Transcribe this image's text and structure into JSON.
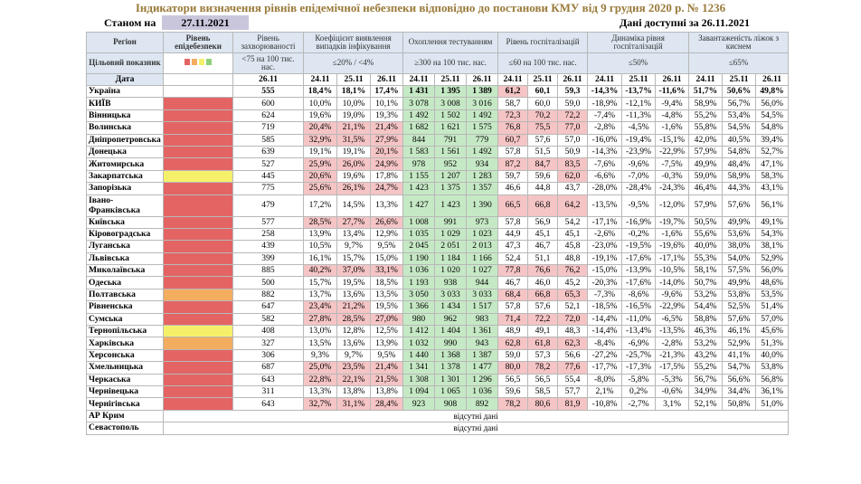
{
  "title": "Індикатори визначення рівнів епідемічної небезпеки відповідно до постанови КМУ від 9 грудня 2020 р. № 1236",
  "as_of_label": "Станом на",
  "as_of_date": "27.11.2021",
  "data_available": "Дані доступні за 26.11.2021",
  "header": {
    "region": "Регіон",
    "risk_level": "Рівень епідебезпеки",
    "incidence": "Рівень захворюваності",
    "detection": "Коефіцієнт виявлення випадків інфікування",
    "testing": "Охоплення тестуванням",
    "hosp": "Рівень госпіталізацій",
    "hosp_dyn": "Динаміка рівня госпіталізацій",
    "beds": "Завантаженість ліжок з киснем",
    "target_label": "Цільовий показник",
    "incidence_target": "<75 на 100 тис. нас.",
    "detection_target": "≤20% / <4%",
    "testing_target": "≥300 на 100 тис. нас.",
    "hosp_target": "≤60 на 100 тис. нас.",
    "hosp_dyn_target": "≤50%",
    "beds_target": "≤65%",
    "date_label": "Дата",
    "incidence_date": "26.11",
    "dates3": [
      "24.11",
      "25.11",
      "26.11"
    ],
    "legend_colors": [
      "#e46464",
      "#f3ad5f",
      "#f5f06a",
      "#8fd07a"
    ]
  },
  "rows": [
    {
      "region": "Україна",
      "risk": "none",
      "inc": "555",
      "det": [
        "18,4%",
        "18,1%",
        "17,4%"
      ],
      "test": [
        "1 431",
        "1 395",
        "1 389"
      ],
      "hosp": [
        "61,2",
        "60,1",
        "59,3"
      ],
      "dyn": [
        "-14,3%",
        "-13,7%",
        "-11,6%"
      ],
      "beds": [
        "51,7%",
        "50,6%",
        "49,8%"
      ],
      "detc": [
        "",
        "",
        ""
      ],
      "testc": [
        "g",
        "g",
        "g"
      ],
      "hospc": [
        "r",
        "",
        ""
      ]
    },
    {
      "region": "КИЇВ",
      "risk": "red",
      "inc": "600",
      "det": [
        "10,0%",
        "10,0%",
        "10,1%"
      ],
      "test": [
        "3 078",
        "3 008",
        "3 016"
      ],
      "hosp": [
        "58,7",
        "60,0",
        "59,0"
      ],
      "dyn": [
        "-18,9%",
        "-12,1%",
        "-9,4%"
      ],
      "beds": [
        "58,9%",
        "56,7%",
        "56,0%"
      ],
      "detc": [
        "",
        "",
        ""
      ],
      "testc": [
        "g",
        "g",
        "g"
      ],
      "hospc": [
        "",
        "",
        ""
      ]
    },
    {
      "region": "Вінницька",
      "risk": "red",
      "inc": "624",
      "det": [
        "19,6%",
        "19,0%",
        "19,3%"
      ],
      "test": [
        "1 492",
        "1 502",
        "1 492"
      ],
      "hosp": [
        "72,3",
        "70,2",
        "72,2"
      ],
      "dyn": [
        "-7,4%",
        "-11,3%",
        "-4,8%"
      ],
      "beds": [
        "55,2%",
        "53,4%",
        "54,5%"
      ],
      "detc": [
        "",
        "",
        ""
      ],
      "testc": [
        "g",
        "g",
        "g"
      ],
      "hospc": [
        "r",
        "r",
        "r"
      ]
    },
    {
      "region": "Волинська",
      "risk": "red",
      "inc": "719",
      "det": [
        "20,4%",
        "21,1%",
        "21,4%"
      ],
      "test": [
        "1 682",
        "1 621",
        "1 575"
      ],
      "hosp": [
        "76,8",
        "75,5",
        "77,0"
      ],
      "dyn": [
        "-2,8%",
        "-4,5%",
        "-1,6%"
      ],
      "beds": [
        "55,8%",
        "54,5%",
        "54,8%"
      ],
      "detc": [
        "r",
        "r",
        "r"
      ],
      "testc": [
        "g",
        "g",
        "g"
      ],
      "hospc": [
        "r",
        "r",
        "r"
      ]
    },
    {
      "region": "Дніпропетровська",
      "risk": "red",
      "inc": "585",
      "det": [
        "32,9%",
        "31,5%",
        "27,9%"
      ],
      "test": [
        "844",
        "791",
        "779"
      ],
      "hosp": [
        "60,7",
        "57,6",
        "57,0"
      ],
      "dyn": [
        "-16,0%",
        "-19,4%",
        "-15,1%"
      ],
      "beds": [
        "42,0%",
        "40,5%",
        "39,4%"
      ],
      "detc": [
        "r",
        "r",
        "r"
      ],
      "testc": [
        "g",
        "g",
        "g"
      ],
      "hospc": [
        "r",
        "",
        ""
      ]
    },
    {
      "region": "Донецька",
      "risk": "red",
      "inc": "639",
      "det": [
        "19,1%",
        "19,1%",
        "20,1%"
      ],
      "test": [
        "1 583",
        "1 561",
        "1 492"
      ],
      "hosp": [
        "57,8",
        "51,5",
        "50,9"
      ],
      "dyn": [
        "-14,3%",
        "-23,9%",
        "-22,9%"
      ],
      "beds": [
        "57,9%",
        "54,8%",
        "52,7%"
      ],
      "detc": [
        "",
        "",
        "r"
      ],
      "testc": [
        "g",
        "g",
        "g"
      ],
      "hospc": [
        "",
        "",
        ""
      ]
    },
    {
      "region": "Житомирська",
      "risk": "red",
      "inc": "527",
      "det": [
        "25,9%",
        "26,0%",
        "24,9%"
      ],
      "test": [
        "978",
        "952",
        "934"
      ],
      "hosp": [
        "87,2",
        "84,7",
        "83,5"
      ],
      "dyn": [
        "-7,6%",
        "-9,6%",
        "-7,5%"
      ],
      "beds": [
        "49,9%",
        "48,4%",
        "47,1%"
      ],
      "detc": [
        "r",
        "r",
        "r"
      ],
      "testc": [
        "g",
        "g",
        "g"
      ],
      "hospc": [
        "r",
        "r",
        "r"
      ]
    },
    {
      "region": "Закарпатська",
      "risk": "yellow",
      "inc": "445",
      "det": [
        "20,6%",
        "19,6%",
        "17,8%"
      ],
      "test": [
        "1 155",
        "1 207",
        "1 283"
      ],
      "hosp": [
        "59,7",
        "59,6",
        "62,0"
      ],
      "dyn": [
        "-6,6%",
        "-7,0%",
        "-0,3%"
      ],
      "beds": [
        "59,0%",
        "58,9%",
        "58,3%"
      ],
      "detc": [
        "r",
        "",
        ""
      ],
      "testc": [
        "g",
        "g",
        "g"
      ],
      "hospc": [
        "",
        "",
        "r"
      ]
    },
    {
      "region": "Запорізька",
      "risk": "red",
      "inc": "775",
      "det": [
        "25,6%",
        "26,1%",
        "24,7%"
      ],
      "test": [
        "1 423",
        "1 375",
        "1 357"
      ],
      "hosp": [
        "46,6",
        "44,8",
        "43,7"
      ],
      "dyn": [
        "-28,0%",
        "-28,4%",
        "-24,3%"
      ],
      "beds": [
        "46,4%",
        "44,3%",
        "43,1%"
      ],
      "detc": [
        "r",
        "r",
        "r"
      ],
      "testc": [
        "g",
        "g",
        "g"
      ],
      "hospc": [
        "",
        "",
        ""
      ]
    },
    {
      "region": "Івано-Франківська",
      "risk": "red",
      "inc": "479",
      "det": [
        "17,2%",
        "14,5%",
        "13,3%"
      ],
      "test": [
        "1 427",
        "1 423",
        "1 390"
      ],
      "hosp": [
        "66,5",
        "66,8",
        "64,2"
      ],
      "dyn": [
        "-13,5%",
        "-9,5%",
        "-12,0%"
      ],
      "beds": [
        "57,9%",
        "57,6%",
        "56,1%"
      ],
      "detc": [
        "",
        "",
        ""
      ],
      "testc": [
        "g",
        "g",
        "g"
      ],
      "hospc": [
        "r",
        "r",
        "r"
      ],
      "tall": true
    },
    {
      "region": "Київська",
      "risk": "red",
      "inc": "577",
      "det": [
        "28,5%",
        "27,7%",
        "26,6%"
      ],
      "test": [
        "1 008",
        "991",
        "973"
      ],
      "hosp": [
        "57,8",
        "56,9",
        "54,2"
      ],
      "dyn": [
        "-17,1%",
        "-16,9%",
        "-19,7%"
      ],
      "beds": [
        "50,5%",
        "49,9%",
        "49,1%"
      ],
      "detc": [
        "r",
        "r",
        "r"
      ],
      "testc": [
        "g",
        "g",
        "g"
      ],
      "hospc": [
        "",
        "",
        ""
      ]
    },
    {
      "region": "Кіровоградська",
      "risk": "red",
      "inc": "258",
      "det": [
        "13,9%",
        "13,4%",
        "12,9%"
      ],
      "test": [
        "1 035",
        "1 029",
        "1 023"
      ],
      "hosp": [
        "44,9",
        "45,1",
        "45,1"
      ],
      "dyn": [
        "-2,6%",
        "-0,2%",
        "-1,6%"
      ],
      "beds": [
        "55,6%",
        "53,6%",
        "54,3%"
      ],
      "detc": [
        "",
        "",
        ""
      ],
      "testc": [
        "g",
        "g",
        "g"
      ],
      "hospc": [
        "",
        "",
        ""
      ]
    },
    {
      "region": "Луганська",
      "risk": "red",
      "inc": "439",
      "det": [
        "10,5%",
        "9,7%",
        "9,5%"
      ],
      "test": [
        "2 045",
        "2 051",
        "2 013"
      ],
      "hosp": [
        "47,3",
        "46,7",
        "45,8"
      ],
      "dyn": [
        "-23,0%",
        "-19,5%",
        "-19,6%"
      ],
      "beds": [
        "40,0%",
        "38,0%",
        "38,1%"
      ],
      "detc": [
        "",
        "",
        ""
      ],
      "testc": [
        "g",
        "g",
        "g"
      ],
      "hospc": [
        "",
        "",
        ""
      ]
    },
    {
      "region": "Львівська",
      "risk": "red",
      "inc": "399",
      "det": [
        "16,1%",
        "15,7%",
        "15,0%"
      ],
      "test": [
        "1 190",
        "1 184",
        "1 166"
      ],
      "hosp": [
        "52,4",
        "51,1",
        "48,8"
      ],
      "dyn": [
        "-19,1%",
        "-17,6%",
        "-17,1%"
      ],
      "beds": [
        "55,3%",
        "54,0%",
        "52,9%"
      ],
      "detc": [
        "",
        "",
        ""
      ],
      "testc": [
        "g",
        "g",
        "g"
      ],
      "hospc": [
        "",
        "",
        ""
      ]
    },
    {
      "region": "Миколаївська",
      "risk": "red",
      "inc": "885",
      "det": [
        "40,2%",
        "37,0%",
        "33,1%"
      ],
      "test": [
        "1 036",
        "1 020",
        "1 027"
      ],
      "hosp": [
        "77,8",
        "76,6",
        "76,2"
      ],
      "dyn": [
        "-15,0%",
        "-13,9%",
        "-10,5%"
      ],
      "beds": [
        "58,1%",
        "57,5%",
        "56,0%"
      ],
      "detc": [
        "r",
        "r",
        "r"
      ],
      "testc": [
        "g",
        "g",
        "g"
      ],
      "hospc": [
        "r",
        "r",
        "r"
      ]
    },
    {
      "region": "Одеська",
      "risk": "red",
      "inc": "500",
      "det": [
        "15,7%",
        "19,5%",
        "18,5%"
      ],
      "test": [
        "1 193",
        "938",
        "944"
      ],
      "hosp": [
        "46,7",
        "46,0",
        "45,2"
      ],
      "dyn": [
        "-20,3%",
        "-17,6%",
        "-14,0%"
      ],
      "beds": [
        "50,7%",
        "49,9%",
        "48,6%"
      ],
      "detc": [
        "",
        "",
        ""
      ],
      "testc": [
        "g",
        "g",
        "g"
      ],
      "hospc": [
        "",
        "",
        ""
      ]
    },
    {
      "region": "Полтавська",
      "risk": "orange",
      "inc": "882",
      "det": [
        "13,7%",
        "13,6%",
        "13,5%"
      ],
      "test": [
        "3 050",
        "3 033",
        "3 033"
      ],
      "hosp": [
        "68,4",
        "66,8",
        "65,3"
      ],
      "dyn": [
        "-7,3%",
        "-8,6%",
        "-9,6%"
      ],
      "beds": [
        "53,2%",
        "53,8%",
        "53,5%"
      ],
      "detc": [
        "",
        "",
        ""
      ],
      "testc": [
        "g",
        "g",
        "g"
      ],
      "hospc": [
        "r",
        "r",
        "r"
      ]
    },
    {
      "region": "Рівненська",
      "risk": "red",
      "inc": "647",
      "det": [
        "23,4%",
        "21,2%",
        "19,5%"
      ],
      "test": [
        "1 366",
        "1 434",
        "1 517"
      ],
      "hosp": [
        "57,8",
        "57,6",
        "52,1"
      ],
      "dyn": [
        "-18,5%",
        "-16,5%",
        "-22,9%"
      ],
      "beds": [
        "54,4%",
        "52,5%",
        "51,4%"
      ],
      "detc": [
        "r",
        "r",
        ""
      ],
      "testc": [
        "g",
        "g",
        "g"
      ],
      "hospc": [
        "",
        "",
        ""
      ]
    },
    {
      "region": "Сумська",
      "risk": "red",
      "inc": "582",
      "det": [
        "27,8%",
        "28,5%",
        "27,0%"
      ],
      "test": [
        "980",
        "962",
        "983"
      ],
      "hosp": [
        "71,4",
        "72,2",
        "72,0"
      ],
      "dyn": [
        "-14,4%",
        "-11,0%",
        "-6,5%"
      ],
      "beds": [
        "58,8%",
        "57,6%",
        "57,0%"
      ],
      "detc": [
        "r",
        "r",
        "r"
      ],
      "testc": [
        "g",
        "g",
        "g"
      ],
      "hospc": [
        "r",
        "r",
        "r"
      ]
    },
    {
      "region": "Тернопільська",
      "risk": "yellow",
      "inc": "408",
      "det": [
        "13,0%",
        "12,8%",
        "12,5%"
      ],
      "test": [
        "1 412",
        "1 404",
        "1 361"
      ],
      "hosp": [
        "48,9",
        "49,1",
        "48,3"
      ],
      "dyn": [
        "-14,4%",
        "-13,4%",
        "-13,5%"
      ],
      "beds": [
        "46,3%",
        "46,1%",
        "45,6%"
      ],
      "detc": [
        "",
        "",
        ""
      ],
      "testc": [
        "g",
        "g",
        "g"
      ],
      "hospc": [
        "",
        "",
        ""
      ]
    },
    {
      "region": "Харківська",
      "risk": "orange",
      "inc": "327",
      "det": [
        "13,5%",
        "13,6%",
        "13,9%"
      ],
      "test": [
        "1 032",
        "990",
        "943"
      ],
      "hosp": [
        "62,8",
        "61,8",
        "62,3"
      ],
      "dyn": [
        "-8,4%",
        "-6,9%",
        "-2,8%"
      ],
      "beds": [
        "53,2%",
        "52,9%",
        "51,3%"
      ],
      "detc": [
        "",
        "",
        ""
      ],
      "testc": [
        "g",
        "g",
        "g"
      ],
      "hospc": [
        "r",
        "r",
        "r"
      ]
    },
    {
      "region": "Херсонська",
      "risk": "red",
      "inc": "306",
      "det": [
        "9,3%",
        "9,7%",
        "9,5%"
      ],
      "test": [
        "1 440",
        "1 368",
        "1 387"
      ],
      "hosp": [
        "59,0",
        "57,3",
        "56,6"
      ],
      "dyn": [
        "-27,2%",
        "-25,7%",
        "-21,3%"
      ],
      "beds": [
        "43,2%",
        "41,1%",
        "40,0%"
      ],
      "detc": [
        "",
        "",
        ""
      ],
      "testc": [
        "g",
        "g",
        "g"
      ],
      "hospc": [
        "",
        "",
        ""
      ]
    },
    {
      "region": "Хмельницька",
      "risk": "red",
      "inc": "687",
      "det": [
        "25,0%",
        "23,5%",
        "21,4%"
      ],
      "test": [
        "1 341",
        "1 378",
        "1 477"
      ],
      "hosp": [
        "80,0",
        "78,2",
        "77,6"
      ],
      "dyn": [
        "-17,7%",
        "-17,3%",
        "-17,5%"
      ],
      "beds": [
        "55,2%",
        "54,7%",
        "53,8%"
      ],
      "detc": [
        "r",
        "r",
        "r"
      ],
      "testc": [
        "g",
        "g",
        "g"
      ],
      "hospc": [
        "r",
        "r",
        "r"
      ]
    },
    {
      "region": "Черкаська",
      "risk": "red",
      "inc": "643",
      "det": [
        "22,8%",
        "22,1%",
        "21,5%"
      ],
      "test": [
        "1 308",
        "1 301",
        "1 296"
      ],
      "hosp": [
        "56,5",
        "56,5",
        "55,4"
      ],
      "dyn": [
        "-8,0%",
        "-5,8%",
        "-5,3%"
      ],
      "beds": [
        "56,7%",
        "56,6%",
        "56,8%"
      ],
      "detc": [
        "r",
        "r",
        "r"
      ],
      "testc": [
        "g",
        "g",
        "g"
      ],
      "hospc": [
        "",
        "",
        ""
      ]
    },
    {
      "region": "Чернівецька",
      "risk": "red",
      "inc": "311",
      "det": [
        "13,3%",
        "13,8%",
        "13,8%"
      ],
      "test": [
        "1 094",
        "1 065",
        "1 036"
      ],
      "hosp": [
        "59,6",
        "58,5",
        "57,7"
      ],
      "dyn": [
        "2,1%",
        "0,2%",
        "-0,6%"
      ],
      "beds": [
        "34,9%",
        "34,4%",
        "36,1%"
      ],
      "detc": [
        "",
        "",
        ""
      ],
      "testc": [
        "g",
        "g",
        "g"
      ],
      "hospc": [
        "",
        "",
        ""
      ]
    },
    {
      "region": "Чернігівська",
      "risk": "red",
      "inc": "643",
      "det": [
        "32,7%",
        "31,1%",
        "28,4%"
      ],
      "test": [
        "923",
        "908",
        "892"
      ],
      "hosp": [
        "78,2",
        "80,6",
        "81,9"
      ],
      "dyn": [
        "-10,8%",
        "-2,7%",
        "3,1%"
      ],
      "beds": [
        "52,1%",
        "50,8%",
        "51,0%"
      ],
      "detc": [
        "r",
        "r",
        "r"
      ],
      "testc": [
        "g",
        "g",
        "g"
      ],
      "hospc": [
        "r",
        "r",
        "r"
      ]
    }
  ],
  "na_rows": [
    {
      "region": "АР Крим",
      "note": "відсутні дані"
    },
    {
      "region": "Севастополь",
      "note": "відсутні дані"
    }
  ]
}
